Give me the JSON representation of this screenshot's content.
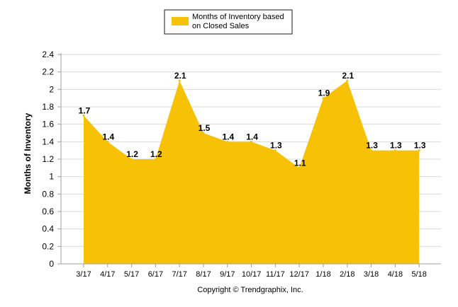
{
  "chart_data": {
    "type": "area",
    "legend": {
      "label_line1": "Months of Inventory based",
      "label_line2": "on Closed Sales",
      "position": "top-center"
    },
    "categories": [
      "3/17",
      "4/17",
      "5/17",
      "6/17",
      "7/17",
      "8/17",
      "9/17",
      "10/17",
      "11/17",
      "12/17",
      "1/18",
      "2/18",
      "3/18",
      "4/18",
      "5/18"
    ],
    "series": [
      {
        "name": "Months of Inventory based on Closed Sales",
        "values": [
          1.7,
          1.4,
          1.2,
          1.2,
          2.1,
          1.5,
          1.4,
          1.4,
          1.3,
          1.1,
          1.9,
          2.1,
          1.3,
          1.3,
          1.3
        ],
        "color": "#F7C205"
      }
    ],
    "data_labels": [
      "1.7",
      "1.4",
      "1.2",
      "1.2",
      "2.1",
      "1.5",
      "1.4",
      "1.4",
      "1.3",
      "1.1",
      "1.9",
      "2.1",
      "1.3",
      "1.3",
      "1.3"
    ],
    "ylabel": "Months of Inventory",
    "xlabel": "",
    "ylim": [
      0,
      2.4
    ],
    "yticks": [
      "0",
      "0.2",
      "0.4",
      "0.6",
      "0.8",
      "1",
      "1.2",
      "1.4",
      "1.6",
      "1.8",
      "2",
      "2.2",
      "2.4"
    ],
    "ytick_values": [
      0,
      0.2,
      0.4,
      0.6,
      0.8,
      1,
      1.2,
      1.4,
      1.6,
      1.8,
      2,
      2.2,
      2.4
    ],
    "grid": true,
    "gridline_color": "#D9D9D9",
    "axis_color": "#A0A0A0"
  },
  "footer": {
    "copyright": "Copyright © Trendgraphix, Inc."
  }
}
